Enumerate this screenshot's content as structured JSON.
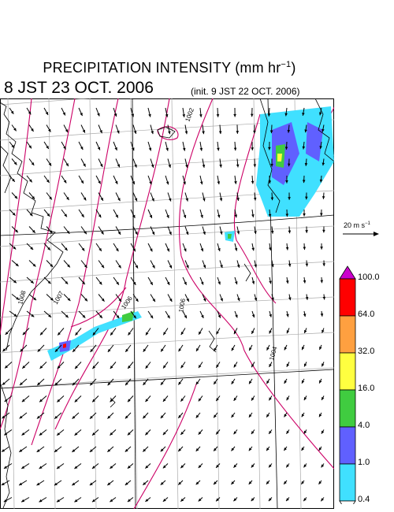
{
  "title": {
    "text": "PRECIPITATION INTENSITY (mm hr",
    "unit_exponent": "−1",
    "close": ")"
  },
  "valid_time": "8 JST 23 OCT. 2006",
  "init_time": "(init. 9 JST 22 OCT. 2006)",
  "wind_scale": {
    "label": "20 m s",
    "exponent": "−1"
  },
  "isobar_labels": [
    "1002",
    "1008",
    "1007",
    "1006",
    "1006",
    "1004"
  ],
  "colorbar": {
    "labels": [
      "100.0",
      "64.0",
      "32.0",
      "16.0",
      "4.0",
      "1.0",
      "0.4"
    ],
    "colors": [
      "#cc00cc",
      "#ff0000",
      "#ffa040",
      "#ffff40",
      "#40cc40",
      "#6060ff",
      "#40e0ff",
      "#ffffff"
    ]
  },
  "colors": {
    "isobar": "#cc0066",
    "grid": "#aaaaaa",
    "coast": "#000000"
  }
}
